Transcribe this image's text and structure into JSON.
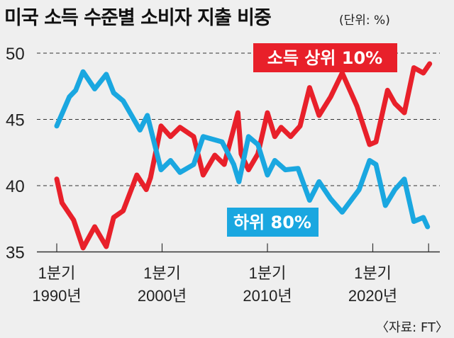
{
  "chart_data": {
    "type": "line",
    "title": "미국 소득 수준별 소비자 지출 비중",
    "unit": "(단위: %)",
    "source": "〈자료: FT〉",
    "ylim": [
      35,
      50
    ],
    "yticks": [
      "50",
      "45",
      "40",
      "35"
    ],
    "ytick_values": [
      50,
      45,
      40,
      35
    ],
    "xlim": [
      1990,
      2025.4
    ],
    "xticks": [
      {
        "value": 1990,
        "line1": "1분기",
        "line2": "1990년"
      },
      {
        "value": 2000,
        "line1": "1분기",
        "line2": "2000년"
      },
      {
        "value": 2010,
        "line1": "1분기",
        "line2": "2010년"
      },
      {
        "value": 2020,
        "line1": "1분기",
        "line2": "2020년"
      }
    ],
    "x_end_tick": 2025.3,
    "grid": "dashed horizontal",
    "series": [
      {
        "name": "소득 상위 10%",
        "color": "#e8202a",
        "x": [
          1990,
          1990.5,
          1991.6,
          1992.5,
          1993.6,
          1994.7,
          1995.4,
          1996.3,
          1997.6,
          1998.5,
          1998.9,
          1999.9,
          2000.8,
          2001.7,
          2003,
          2003.9,
          2005,
          2005.9,
          2007.2,
          2007.5,
          2008.2,
          2009.1,
          2010,
          2010.7,
          2011.3,
          2012.2,
          2013.1,
          2014,
          2014.9,
          2016,
          2017.1,
          2018.5,
          2019.7,
          2020.3,
          2021.4,
          2022.1,
          2023,
          2023.9,
          2024.8,
          2025.4
        ],
        "values": [
          40.5,
          38.7,
          37.4,
          35.3,
          36.9,
          35.4,
          37.6,
          38.1,
          40.8,
          39.7,
          40.6,
          44.5,
          43.7,
          44.4,
          43.7,
          40.8,
          42.3,
          41.6,
          45.5,
          42.4,
          41.2,
          42.4,
          45.5,
          43.7,
          44.4,
          43.7,
          44.5,
          47.4,
          45.3,
          46.7,
          48.5,
          46.0,
          43.1,
          43.3,
          47.2,
          46.2,
          45.5,
          48.9,
          48.5,
          49.2
        ]
      },
      {
        "name": "하위 80%",
        "color": "#1aa7e0",
        "x": [
          1990,
          1991.2,
          1991.8,
          1992.5,
          1993.6,
          1994.7,
          1995.4,
          1996.3,
          1997.9,
          1998.6,
          1999.9,
          2000.8,
          2001.7,
          2003,
          2003.9,
          2005.7,
          2006.8,
          2007.3,
          2008.2,
          2009.1,
          2010,
          2010.7,
          2011.7,
          2012.9,
          2014,
          2014.9,
          2016,
          2017.1,
          2018.7,
          2019.7,
          2020.3,
          2021.2,
          2022.1,
          2023,
          2023.9,
          2024.8,
          2025.2
        ],
        "values": [
          44.5,
          46.7,
          47.2,
          48.6,
          47.3,
          48.4,
          47.0,
          46.4,
          44.2,
          45.3,
          41.2,
          41.9,
          41.0,
          41.6,
          43.7,
          43.3,
          41.6,
          40.3,
          43.7,
          43.1,
          40.8,
          41.9,
          41.2,
          41.3,
          38.9,
          40.3,
          39.0,
          38.0,
          39.7,
          41.9,
          41.6,
          38.5,
          39.7,
          40.5,
          37.3,
          37.6,
          36.9
        ]
      }
    ]
  }
}
